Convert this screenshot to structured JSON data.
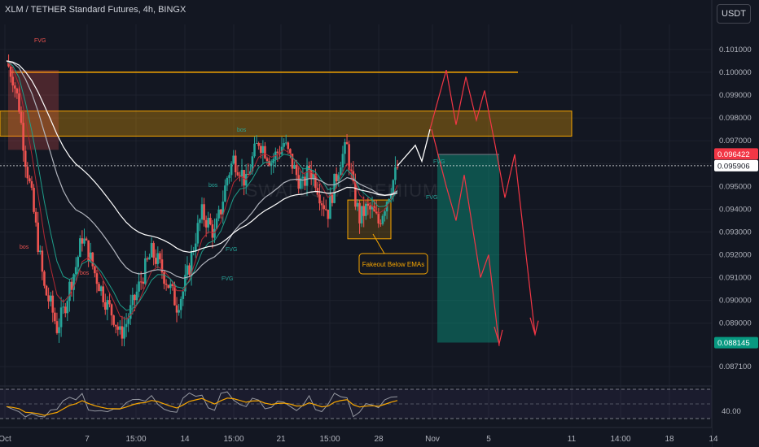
{
  "header": {
    "title": "XLM / TETHER Standard Futures, 4h, BINGX",
    "currency": "USDT"
  },
  "watermark": "SWALLOW PREMIUM",
  "price_scale": {
    "ticks": [
      "0.101000",
      "0.100000",
      "0.099000",
      "0.098000",
      "0.097000",
      "0.096000",
      "0.095000",
      "0.094000",
      "0.093000",
      "0.092000",
      "0.091000",
      "0.090000",
      "0.089000",
      "0.087100"
    ],
    "badges": [
      {
        "value": "0.096422",
        "color": "#f23645"
      },
      {
        "value": "0.095906",
        "color": "#ffffff"
      },
      {
        "value": "0.088145",
        "color": "#089981"
      }
    ]
  },
  "time_axis": {
    "ticks": [
      "Oct",
      "7",
      "15:00",
      "14",
      "15:00",
      "21",
      "15:00",
      "28",
      "Nov",
      "5",
      "11",
      "14:00",
      "18",
      "14"
    ]
  },
  "rsi": {
    "level_label": "40.00"
  },
  "annotations": {
    "fvg": [
      "FVG",
      "FVG",
      "FVG",
      "FVG",
      "FVG"
    ],
    "bos": [
      "bos",
      "bos",
      "bos",
      "bos"
    ],
    "callout": "Fakeout Below EMAs"
  },
  "colors": {
    "background": "#131722",
    "bull": "#26a69a",
    "bear": "#ef5350",
    "zone_orange": "#f7a600",
    "short_target": "#089981",
    "projection": "#f23645"
  },
  "chart_data": {
    "type": "candlestick",
    "symbol": "XLM / TETHER Standard Futures",
    "timeframe": "4h",
    "exchange": "BINGX",
    "ylim": [
      0.0866,
      0.1021
    ],
    "last_price": 0.095906,
    "levels": {
      "resistance_line": 0.1,
      "supply_zone": [
        0.0972,
        0.0983
      ],
      "short_entry": 0.0964,
      "short_target": 0.08815,
      "fakeout_box": [
        0.0927,
        0.0944
      ]
    },
    "price_path": [
      0.1005,
      0.0998,
      0.0985,
      0.0962,
      0.0945,
      0.0925,
      0.0905,
      0.0898,
      0.0888,
      0.0895,
      0.0906,
      0.0915,
      0.0928,
      0.0921,
      0.0912,
      0.0905,
      0.0898,
      0.0893,
      0.0885,
      0.089,
      0.0898,
      0.0906,
      0.0914,
      0.0921,
      0.0917,
      0.0911,
      0.0905,
      0.0898,
      0.0904,
      0.0915,
      0.0928,
      0.0938,
      0.0934,
      0.0929,
      0.094,
      0.0954,
      0.0962,
      0.0958,
      0.0951,
      0.0962,
      0.097,
      0.0966,
      0.0961,
      0.0965,
      0.0969,
      0.0962,
      0.0955,
      0.095,
      0.0958,
      0.0953,
      0.0944,
      0.0939,
      0.0951,
      0.0962,
      0.0967,
      0.0948,
      0.0936,
      0.094,
      0.0939,
      0.0934,
      0.0942,
      0.095,
      0.0958
    ]
  }
}
